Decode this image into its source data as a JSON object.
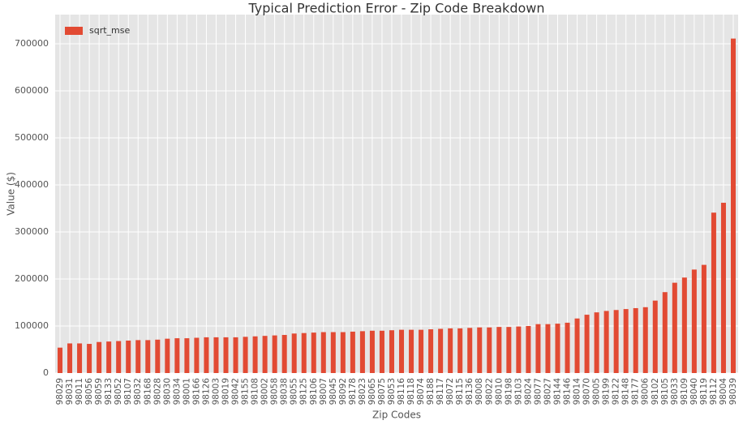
{
  "chart_data": {
    "type": "bar",
    "title": "Typical Prediction Error - Zip Code Breakdown",
    "x_label": "Zip Codes",
    "y_label": "Value ($)",
    "categories": [
      "98029",
      "98031",
      "98011",
      "98056",
      "98059",
      "98133",
      "98052",
      "98107",
      "98032",
      "98168",
      "98028",
      "98030",
      "98034",
      "98001",
      "98166",
      "98126",
      "98003",
      "98019",
      "98042",
      "98155",
      "98108",
      "98002",
      "98058",
      "98038",
      "98055",
      "98125",
      "98106",
      "98007",
      "98045",
      "98092",
      "98178",
      "98023",
      "98065",
      "98075",
      "98053",
      "98116",
      "98118",
      "98074",
      "98188",
      "98117",
      "98072",
      "98115",
      "98136",
      "98008",
      "98022",
      "98010",
      "98198",
      "98103",
      "98024",
      "98077",
      "98027",
      "98144",
      "98146",
      "98014",
      "98070",
      "98005",
      "98199",
      "98122",
      "98148",
      "98177",
      "98006",
      "98102",
      "98105",
      "98033",
      "98109",
      "98040",
      "98119",
      "98112",
      "98004",
      "98039"
    ],
    "series": [
      {
        "name": "sqrt_mse",
        "color": "#e24a33",
        "values": [
          54000,
          63000,
          63000,
          62000,
          66000,
          67000,
          68000,
          69000,
          70000,
          70000,
          71000,
          73000,
          74000,
          74000,
          75000,
          76000,
          76000,
          76000,
          76000,
          77000,
          78000,
          79000,
          80000,
          81000,
          84000,
          85000,
          86000,
          87000,
          87000,
          87000,
          88000,
          89000,
          90000,
          90000,
          91000,
          92000,
          92000,
          92000,
          93000,
          94000,
          95000,
          95000,
          96000,
          97000,
          97000,
          98000,
          98000,
          99000,
          100000,
          104000,
          104000,
          105000,
          107000,
          116000,
          124000,
          129000,
          132000,
          134000,
          136000,
          138000,
          140000,
          154000,
          172000,
          192000,
          203000,
          220000,
          230000,
          341000,
          362000,
          711000
        ]
      }
    ],
    "ylim": [
      0,
      762000
    ],
    "yticks": [
      0,
      100000,
      200000,
      300000,
      400000,
      500000,
      600000,
      700000
    ],
    "grid": true,
    "legend": "upper left"
  }
}
